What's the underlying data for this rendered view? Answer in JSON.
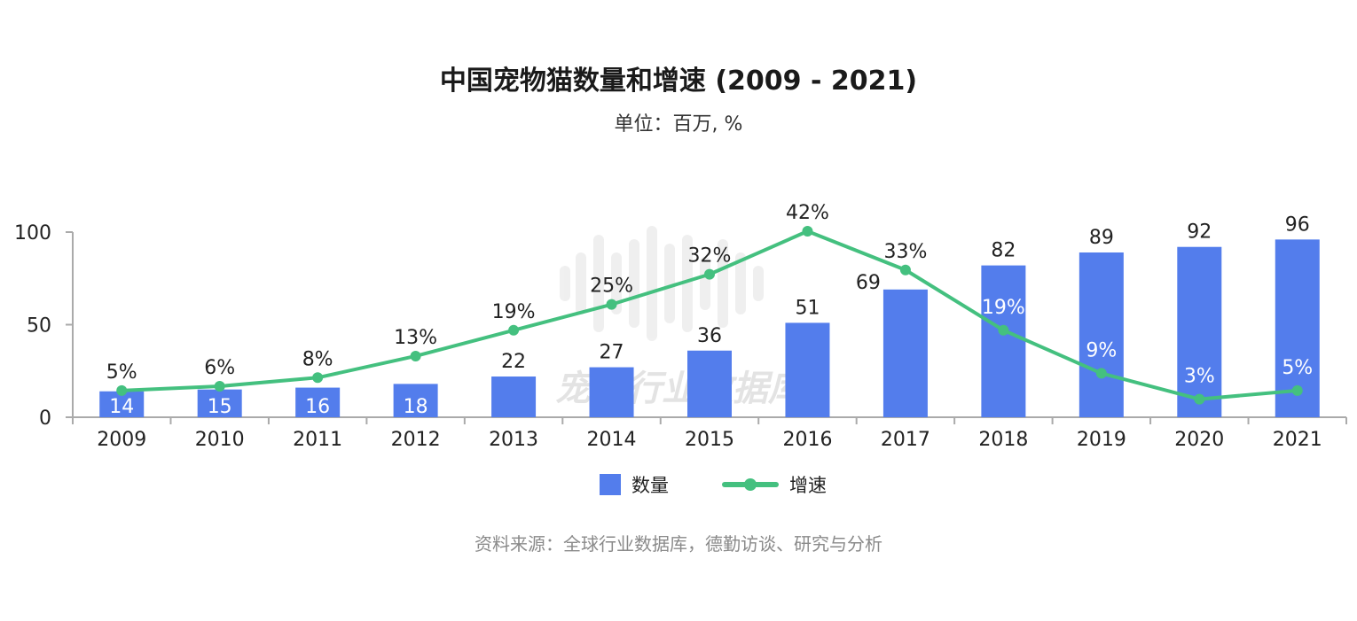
{
  "chart_data": {
    "type": "bar+line",
    "title": "中国宠物猫数量和增速 (2009 - 2021)",
    "subtitle": "单位：百万, %",
    "categories": [
      "2009",
      "2010",
      "2011",
      "2012",
      "2013",
      "2014",
      "2015",
      "2016",
      "2017",
      "2018",
      "2019",
      "2020",
      "2021"
    ],
    "series": [
      {
        "name": "数量",
        "type": "bar",
        "color": "#537DEC",
        "values": [
          14,
          15,
          16,
          18,
          22,
          27,
          36,
          51,
          69,
          82,
          89,
          92,
          96
        ]
      },
      {
        "name": "增速",
        "type": "line",
        "color": "#44C07F",
        "values": [
          5,
          6,
          8,
          13,
          19,
          25,
          32,
          42,
          33,
          19,
          9,
          3,
          5
        ],
        "unit": "%"
      }
    ],
    "ylim": [
      0,
      100
    ],
    "yticks": [
      "0",
      "50",
      "100"
    ],
    "y2lim": [
      -1.2,
      42
    ],
    "grid": false,
    "legend": "bottom",
    "source": "资料来源：全球行业数据库，德勤访谈、研究与分析",
    "watermark": "宠物行业数据库"
  }
}
